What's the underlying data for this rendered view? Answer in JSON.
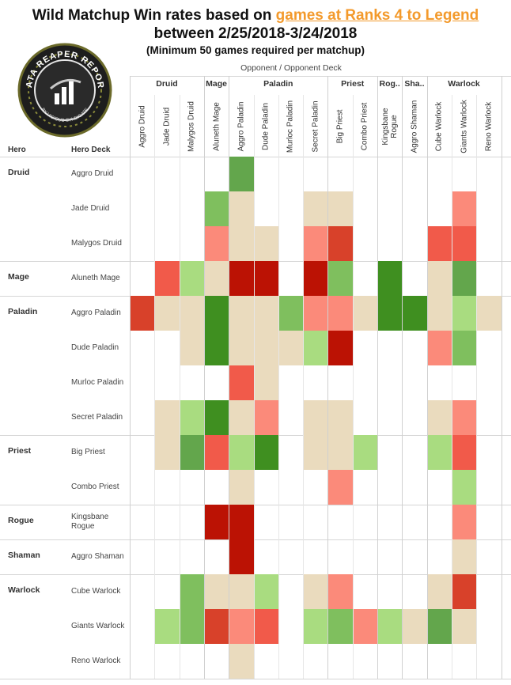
{
  "title": {
    "line1_prefix": "Wild Matchup Win rates based on ",
    "line1_link": "games at Ranks 4 to Legend",
    "line2": "between 2/25/2018-3/24/2018",
    "line3": "(Minimum 50 games required per matchup)"
  },
  "logo": {
    "text_top": "DATA REAPER REPORT",
    "text_bottom": "BY VICIOUS SYNDICATE"
  },
  "headers": {
    "opponent": "Opponent  /  Opponent Deck",
    "hero": "Hero",
    "hero_deck": "Hero Deck"
  },
  "colors": {
    "dark_green": "#3f8f20",
    "green": "#63a64c",
    "med_green": "#7fbf5e",
    "light_green": "#a9dc80",
    "neutral": "#eadbbe",
    "light_red": "#fb8a7a",
    "red": "#f15a4a",
    "dark_red": "#d8412a",
    "deep_red": "#bb1204"
  },
  "chart_data": {
    "type": "heatmap",
    "title": "Wild Matchup Win rates based on games at Ranks 4 to Legend between 2/25/2018-3/24/2018",
    "subtitle": "(Minimum 50 games required per matchup)",
    "xlabel": "Opponent / Opponent Deck",
    "ylabel": "Hero / Hero Deck",
    "legend": "none",
    "grid": true,
    "column_classes": [
      {
        "name": "Druid",
        "span": 3
      },
      {
        "name": "Mage",
        "span": 1
      },
      {
        "name": "Paladin",
        "span": 4
      },
      {
        "name": "Priest",
        "span": 2
      },
      {
        "name": "Rog..",
        "span": 1
      },
      {
        "name": "Sha..",
        "span": 1
      },
      {
        "name": "Warlock",
        "span": 3
      }
    ],
    "columns": [
      "Aggro Druid",
      "Jade Druid",
      "Malygos Druid",
      "Aluneth Mage",
      "Aggro Paladin",
      "Dude Paladin",
      "Murloc Paladin",
      "Secret Paladin",
      "Big Priest",
      "Combo Priest",
      "Kingsbane Rogue",
      "Aggro Shaman",
      "Cube Warlock",
      "Giants Warlock",
      "Reno Warlock"
    ],
    "row_groups": [
      {
        "hero": "Druid",
        "decks": [
          "Aggro Druid",
          "Jade Druid",
          "Malygos Druid"
        ]
      },
      {
        "hero": "Mage",
        "decks": [
          "Aluneth Mage"
        ]
      },
      {
        "hero": "Paladin",
        "decks": [
          "Aggro Paladin",
          "Dude Paladin",
          "Murloc Paladin",
          "Secret Paladin"
        ]
      },
      {
        "hero": "Priest",
        "decks": [
          "Big Priest",
          "Combo Priest"
        ]
      },
      {
        "hero": "Rogue",
        "decks": [
          "Kingsbane Rogue"
        ]
      },
      {
        "hero": "Shaman",
        "decks": [
          "Aggro Shaman"
        ]
      },
      {
        "hero": "Warlock",
        "decks": [
          "Cube Warlock",
          "Giants Warlock",
          "Reno Warlock"
        ]
      }
    ],
    "scale": {
      "dark_green": "#3f8f20",
      "green": "#63a64c",
      "med_green": "#7fbf5e",
      "light_green": "#a9dc80",
      "neutral": "#eadbbe",
      "light_red": "#fb8a7a",
      "red": "#f15a4a",
      "dark_red": "#d8412a",
      "deep_red": "#bb1204"
    },
    "cells": [
      [
        null,
        null,
        null,
        null,
        "green",
        null,
        null,
        null,
        null,
        null,
        null,
        null,
        null,
        null,
        null
      ],
      [
        null,
        null,
        null,
        "med_green",
        "neutral",
        null,
        null,
        "neutral",
        "neutral",
        null,
        null,
        null,
        null,
        "light_red",
        null
      ],
      [
        null,
        null,
        null,
        "light_red",
        "neutral",
        "neutral",
        null,
        "light_red",
        "dark_red",
        null,
        null,
        null,
        "red",
        "red",
        null
      ],
      [
        null,
        "red",
        "light_green",
        "neutral",
        "deep_red",
        "deep_red",
        null,
        "deep_red",
        "med_green",
        null,
        "dark_green",
        null,
        "neutral",
        "green",
        null
      ],
      [
        "dark_red",
        "neutral",
        "neutral",
        "dark_green",
        "neutral",
        "neutral",
        "med_green",
        "light_red",
        "light_red",
        "neutral",
        "dark_green",
        "dark_green",
        "neutral",
        "light_green",
        "neutral"
      ],
      [
        null,
        null,
        "neutral",
        "dark_green",
        "neutral",
        "neutral",
        "neutral",
        "light_green",
        "deep_red",
        null,
        null,
        null,
        "light_red",
        "med_green",
        null
      ],
      [
        null,
        null,
        null,
        null,
        "red",
        "neutral",
        null,
        null,
        null,
        null,
        null,
        null,
        null,
        null,
        null
      ],
      [
        null,
        "neutral",
        "light_green",
        "dark_green",
        "neutral",
        "light_red",
        null,
        "neutral",
        "neutral",
        null,
        null,
        null,
        "neutral",
        "light_red",
        null
      ],
      [
        null,
        "neutral",
        "green",
        "red",
        "light_green",
        "dark_green",
        null,
        "neutral",
        "neutral",
        "light_green",
        null,
        null,
        "light_green",
        "red",
        null
      ],
      [
        null,
        null,
        null,
        null,
        "neutral",
        null,
        null,
        null,
        "light_red",
        null,
        null,
        null,
        null,
        "light_green",
        null
      ],
      [
        null,
        null,
        null,
        "deep_red",
        "deep_red",
        null,
        null,
        null,
        null,
        null,
        null,
        null,
        null,
        "light_red",
        null
      ],
      [
        null,
        null,
        null,
        null,
        "deep_red",
        null,
        null,
        null,
        null,
        null,
        null,
        null,
        null,
        "neutral",
        null
      ],
      [
        null,
        null,
        "med_green",
        "neutral",
        "neutral",
        "light_green",
        null,
        "neutral",
        "light_red",
        null,
        null,
        null,
        "neutral",
        "dark_red",
        null
      ],
      [
        null,
        "light_green",
        "med_green",
        "dark_red",
        "light_red",
        "red",
        null,
        "light_green",
        "med_green",
        "light_red",
        "light_green",
        "neutral",
        "green",
        "neutral",
        null
      ],
      [
        null,
        null,
        null,
        null,
        "neutral",
        null,
        null,
        null,
        null,
        null,
        null,
        null,
        null,
        null,
        null
      ]
    ]
  }
}
